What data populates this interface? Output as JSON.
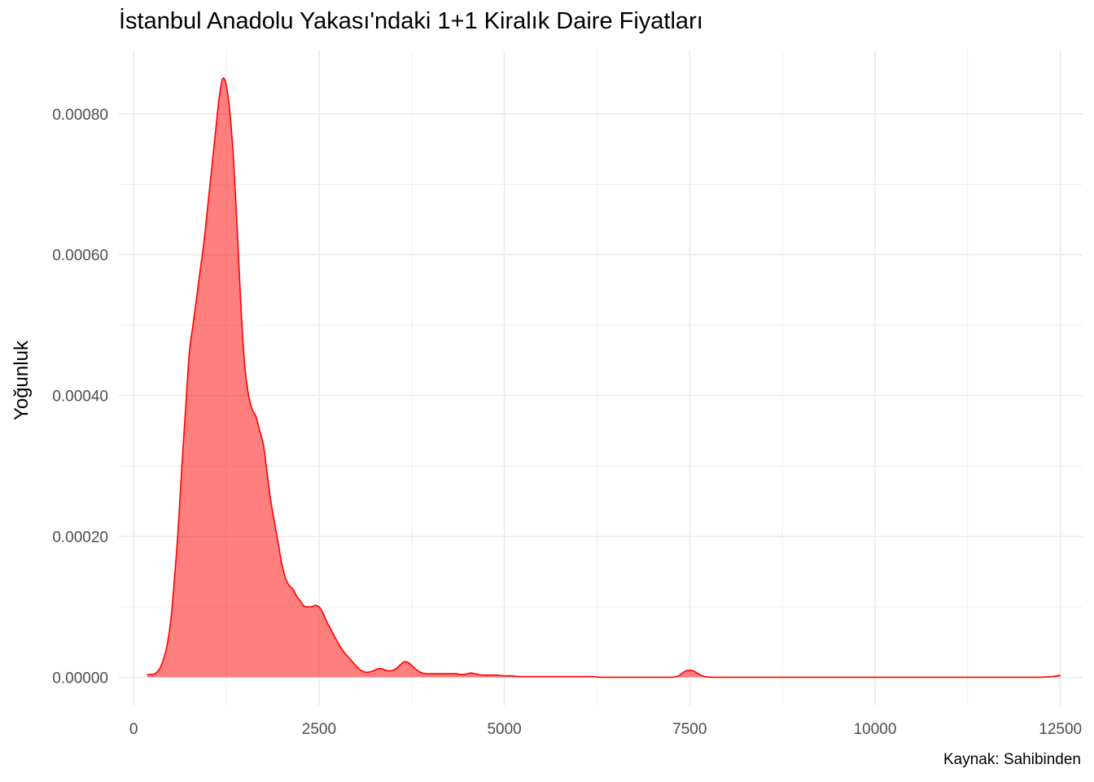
{
  "chart_data": {
    "type": "area",
    "title": "İstanbul Anadolu Yakası'ndaki 1+1 Kiralık Daire Fiyatları",
    "xlabel": "",
    "ylabel": "Yoğunluk",
    "caption": "Kaynak: Sahibinden",
    "xlim": [
      -200,
      12800
    ],
    "ylim": [
      -4e-05,
      0.00089
    ],
    "x_ticks": [
      0,
      2500,
      5000,
      7500,
      10000,
      12500
    ],
    "x_tick_labels": [
      "0",
      "2500",
      "5000",
      "7500",
      "10000",
      "12500"
    ],
    "y_ticks": [
      0,
      0.0002,
      0.0004,
      0.0006,
      0.0008
    ],
    "y_tick_labels": [
      "0.00000",
      "0.00020",
      "0.00040",
      "0.00060",
      "0.00080"
    ],
    "grid": true,
    "legend": "none",
    "colors": {
      "fill": "#FF0000",
      "fill_opacity": 0.5,
      "line": "#FF0000",
      "grid": "#EBEBEB",
      "tick_text": "#4D4D4D"
    },
    "series": [
      {
        "x": [
          180,
          250,
          300,
          350,
          400,
          450,
          500,
          550,
          600,
          650,
          700,
          750,
          800,
          850,
          900,
          950,
          1000,
          1050,
          1100,
          1150,
          1200,
          1250,
          1300,
          1350,
          1400,
          1450,
          1500,
          1550,
          1600,
          1650,
          1700,
          1750,
          1800,
          1850,
          1900,
          1950,
          2000,
          2050,
          2100,
          2150,
          2200,
          2250,
          2300,
          2350,
          2400,
          2450,
          2500,
          2550,
          2600,
          2650,
          2700,
          2750,
          2800,
          2850,
          2900,
          2950,
          3000,
          3050,
          3100,
          3150,
          3200,
          3250,
          3300,
          3350,
          3400,
          3450,
          3500,
          3550,
          3600,
          3650,
          3700,
          3750,
          3800,
          3850,
          3900,
          3950,
          4000,
          4050,
          4100,
          4150,
          4200,
          4250,
          4300,
          4350,
          4400,
          4450,
          4500,
          4550,
          4600,
          4650,
          4700,
          4750,
          4800,
          4900,
          5000,
          5100,
          5200,
          5300,
          5400,
          5500,
          5600,
          5700,
          5800,
          5900,
          6000,
          6100,
          6200,
          6300,
          6500,
          7000,
          7250,
          7350,
          7400,
          7450,
          7500,
          7550,
          7600,
          7650,
          7700,
          7800,
          8000,
          9000,
          10000,
          11000,
          12000,
          12200,
          12400,
          12500
        ],
        "y": [
          4e-06,
          4e-06,
          6e-06,
          1.2e-05,
          2.5e-05,
          4.5e-05,
          8e-05,
          0.00014,
          0.00021,
          0.0003,
          0.00038,
          0.00046,
          0.0005,
          0.00054,
          0.00058,
          0.00062,
          0.00067,
          0.00072,
          0.00077,
          0.00082,
          0.00085,
          0.00084,
          0.0008,
          0.00073,
          0.00063,
          0.00052,
          0.00044,
          0.0004,
          0.00038,
          0.00037,
          0.00035,
          0.00033,
          0.00029,
          0.00025,
          0.00022,
          0.00019,
          0.00016,
          0.00014,
          0.00013,
          0.000125,
          0.000115,
          0.000108,
          0.000101,
          0.0001,
          0.0001,
          0.000102,
          0.0001,
          9.2e-05,
          8e-05,
          7e-05,
          6e-05,
          5e-05,
          4.1e-05,
          3.4e-05,
          2.8e-05,
          2.2e-05,
          1.6e-05,
          1.1e-05,
          8e-06,
          7e-06,
          8e-06,
          1e-05,
          1.2e-05,
          1.2e-05,
          1e-05,
          9e-06,
          1e-05,
          1.3e-05,
          1.8e-05,
          2.2e-05,
          2.1e-05,
          1.7e-05,
          1.2e-05,
          8e-06,
          6e-06,
          5e-06,
          5e-06,
          5e-06,
          5e-06,
          5e-06,
          5e-06,
          5e-06,
          5e-06,
          5e-06,
          4e-06,
          4e-06,
          5e-06,
          6e-06,
          5e-06,
          4e-06,
          3e-06,
          3e-06,
          3e-06,
          3e-06,
          2e-06,
          2e-06,
          1e-06,
          1e-06,
          1e-06,
          1e-06,
          1e-06,
          1e-06,
          1e-06,
          1e-06,
          1e-06,
          1e-06,
          1e-06,
          0.0,
          0.0,
          0.0,
          0.0,
          2e-06,
          6e-06,
          9e-06,
          1e-05,
          9e-06,
          6e-06,
          3e-06,
          1e-06,
          0.0,
          0.0,
          0.0,
          0.0,
          0.0,
          0.0,
          0.0,
          1e-06,
          3e-06
        ]
      }
    ]
  }
}
